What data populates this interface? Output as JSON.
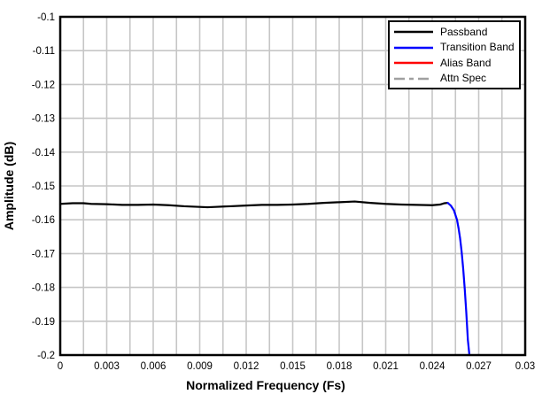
{
  "figure": {
    "background": "#ffffff"
  },
  "chart_data": {
    "type": "line",
    "title": "",
    "xlabel": "Normalized Frequency (Fs)",
    "ylabel": "Amplitude (dB)",
    "xlim": [
      0,
      0.03
    ],
    "ylim": [
      -0.2,
      -0.1
    ],
    "grid": true,
    "grid_color": "#c6c6c6",
    "frame_color": "#000000",
    "x_minor_grid_step": 0.0015,
    "x_ticks": [
      0,
      0.003,
      0.006,
      0.009,
      0.012,
      0.015,
      0.018,
      0.021,
      0.024,
      0.027,
      0.03
    ],
    "x_tick_labels": [
      "0",
      "0.003",
      "0.006",
      "0.009",
      "0.012",
      "0.015",
      "0.018",
      "0.021",
      "0.024",
      "0.027",
      "0.03"
    ],
    "y_ticks": [
      -0.1,
      -0.11,
      -0.12,
      -0.13,
      -0.14,
      -0.15,
      -0.16,
      -0.17,
      -0.18,
      -0.19,
      -0.2
    ],
    "y_tick_labels": [
      "-0.1",
      "-0.11",
      "-0.12",
      "-0.13",
      "-0.14",
      "-0.15",
      "-0.16",
      "-0.17",
      "-0.18",
      "-0.19",
      "-0.2"
    ],
    "legend_position": "top-right",
    "series": [
      {
        "name": "Passband",
        "color": "#000000",
        "dash": "",
        "points": [
          [
            0.0,
            -0.1553
          ],
          [
            0.0008,
            -0.1551
          ],
          [
            0.0015,
            -0.1551
          ],
          [
            0.002,
            -0.1553
          ],
          [
            0.003,
            -0.1554
          ],
          [
            0.004,
            -0.1556
          ],
          [
            0.005,
            -0.1556
          ],
          [
            0.006,
            -0.1555
          ],
          [
            0.007,
            -0.1557
          ],
          [
            0.008,
            -0.156
          ],
          [
            0.009,
            -0.1562
          ],
          [
            0.0095,
            -0.1563
          ],
          [
            0.01,
            -0.1562
          ],
          [
            0.011,
            -0.156
          ],
          [
            0.012,
            -0.1558
          ],
          [
            0.013,
            -0.1556
          ],
          [
            0.014,
            -0.1556
          ],
          [
            0.015,
            -0.1555
          ],
          [
            0.016,
            -0.1553
          ],
          [
            0.017,
            -0.155
          ],
          [
            0.018,
            -0.1548
          ],
          [
            0.019,
            -0.1546
          ],
          [
            0.02,
            -0.155
          ],
          [
            0.021,
            -0.1553
          ],
          [
            0.022,
            -0.1555
          ],
          [
            0.023,
            -0.1556
          ],
          [
            0.024,
            -0.1557
          ],
          [
            0.0245,
            -0.1555
          ],
          [
            0.0248,
            -0.1551
          ],
          [
            0.025,
            -0.155
          ]
        ]
      },
      {
        "name": "Transition Band",
        "color": "#0000ff",
        "dash": "",
        "points": [
          [
            0.025,
            -0.155
          ],
          [
            0.0252,
            -0.1558
          ],
          [
            0.0254,
            -0.1572
          ],
          [
            0.0256,
            -0.16
          ],
          [
            0.0257,
            -0.1625
          ],
          [
            0.0258,
            -0.1655
          ],
          [
            0.0259,
            -0.1695
          ],
          [
            0.026,
            -0.1745
          ],
          [
            0.0261,
            -0.1805
          ],
          [
            0.0262,
            -0.1875
          ],
          [
            0.0263,
            -0.1955
          ],
          [
            0.0264,
            -0.2
          ]
        ]
      },
      {
        "name": "Alias Band",
        "color": "#ff0000",
        "dash": "",
        "points": []
      },
      {
        "name": "Attn Spec",
        "color": "#a0a0a0",
        "dash": "12 5 5 5",
        "points": []
      }
    ]
  }
}
